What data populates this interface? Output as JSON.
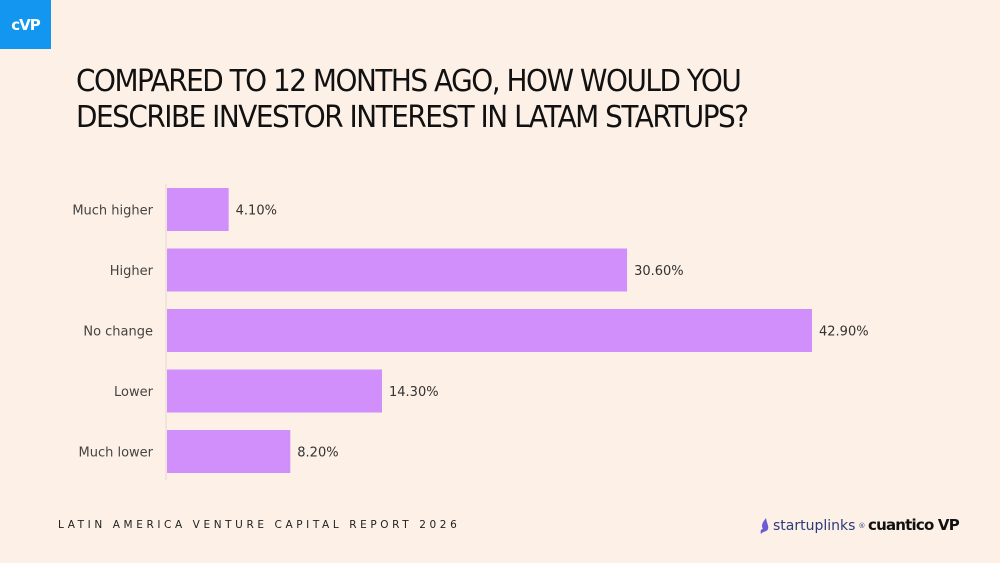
{
  "logo": {
    "text": "cVP",
    "color": "#1296f0"
  },
  "title": {
    "line1": "COMPARED TO 12 MONTHS AGO, HOW WOULD YOU",
    "line2": "DESCRIBE INVESTOR INTEREST IN LATAM STARTUPS?"
  },
  "footer": {
    "report": "LATIN AMERICA VENTURE CAPITAL REPORT 2026",
    "brands": {
      "startuplinks": "startuplinks",
      "startuplinks_mark": "®",
      "cuantico": "cuantico VP"
    }
  },
  "chart_data": {
    "type": "bar",
    "orientation": "horizontal",
    "title": "COMPARED TO 12 MONTHS AGO, HOW WOULD YOU DESCRIBE INVESTOR INTEREST IN LATAM STARTUPS?",
    "categories": [
      "Much higher",
      "Higher",
      "No change",
      "Lower",
      "Much lower"
    ],
    "values": [
      4.1,
      30.6,
      42.9,
      14.3,
      8.2
    ],
    "value_labels": [
      "4.10%",
      "30.60%",
      "42.90%",
      "14.30%",
      "8.20%"
    ],
    "unit": "%",
    "xlabel": "",
    "ylabel": "",
    "xlim": [
      0,
      42.9
    ],
    "grid": false,
    "legend": "none",
    "bar_color": "#d08ffa"
  }
}
